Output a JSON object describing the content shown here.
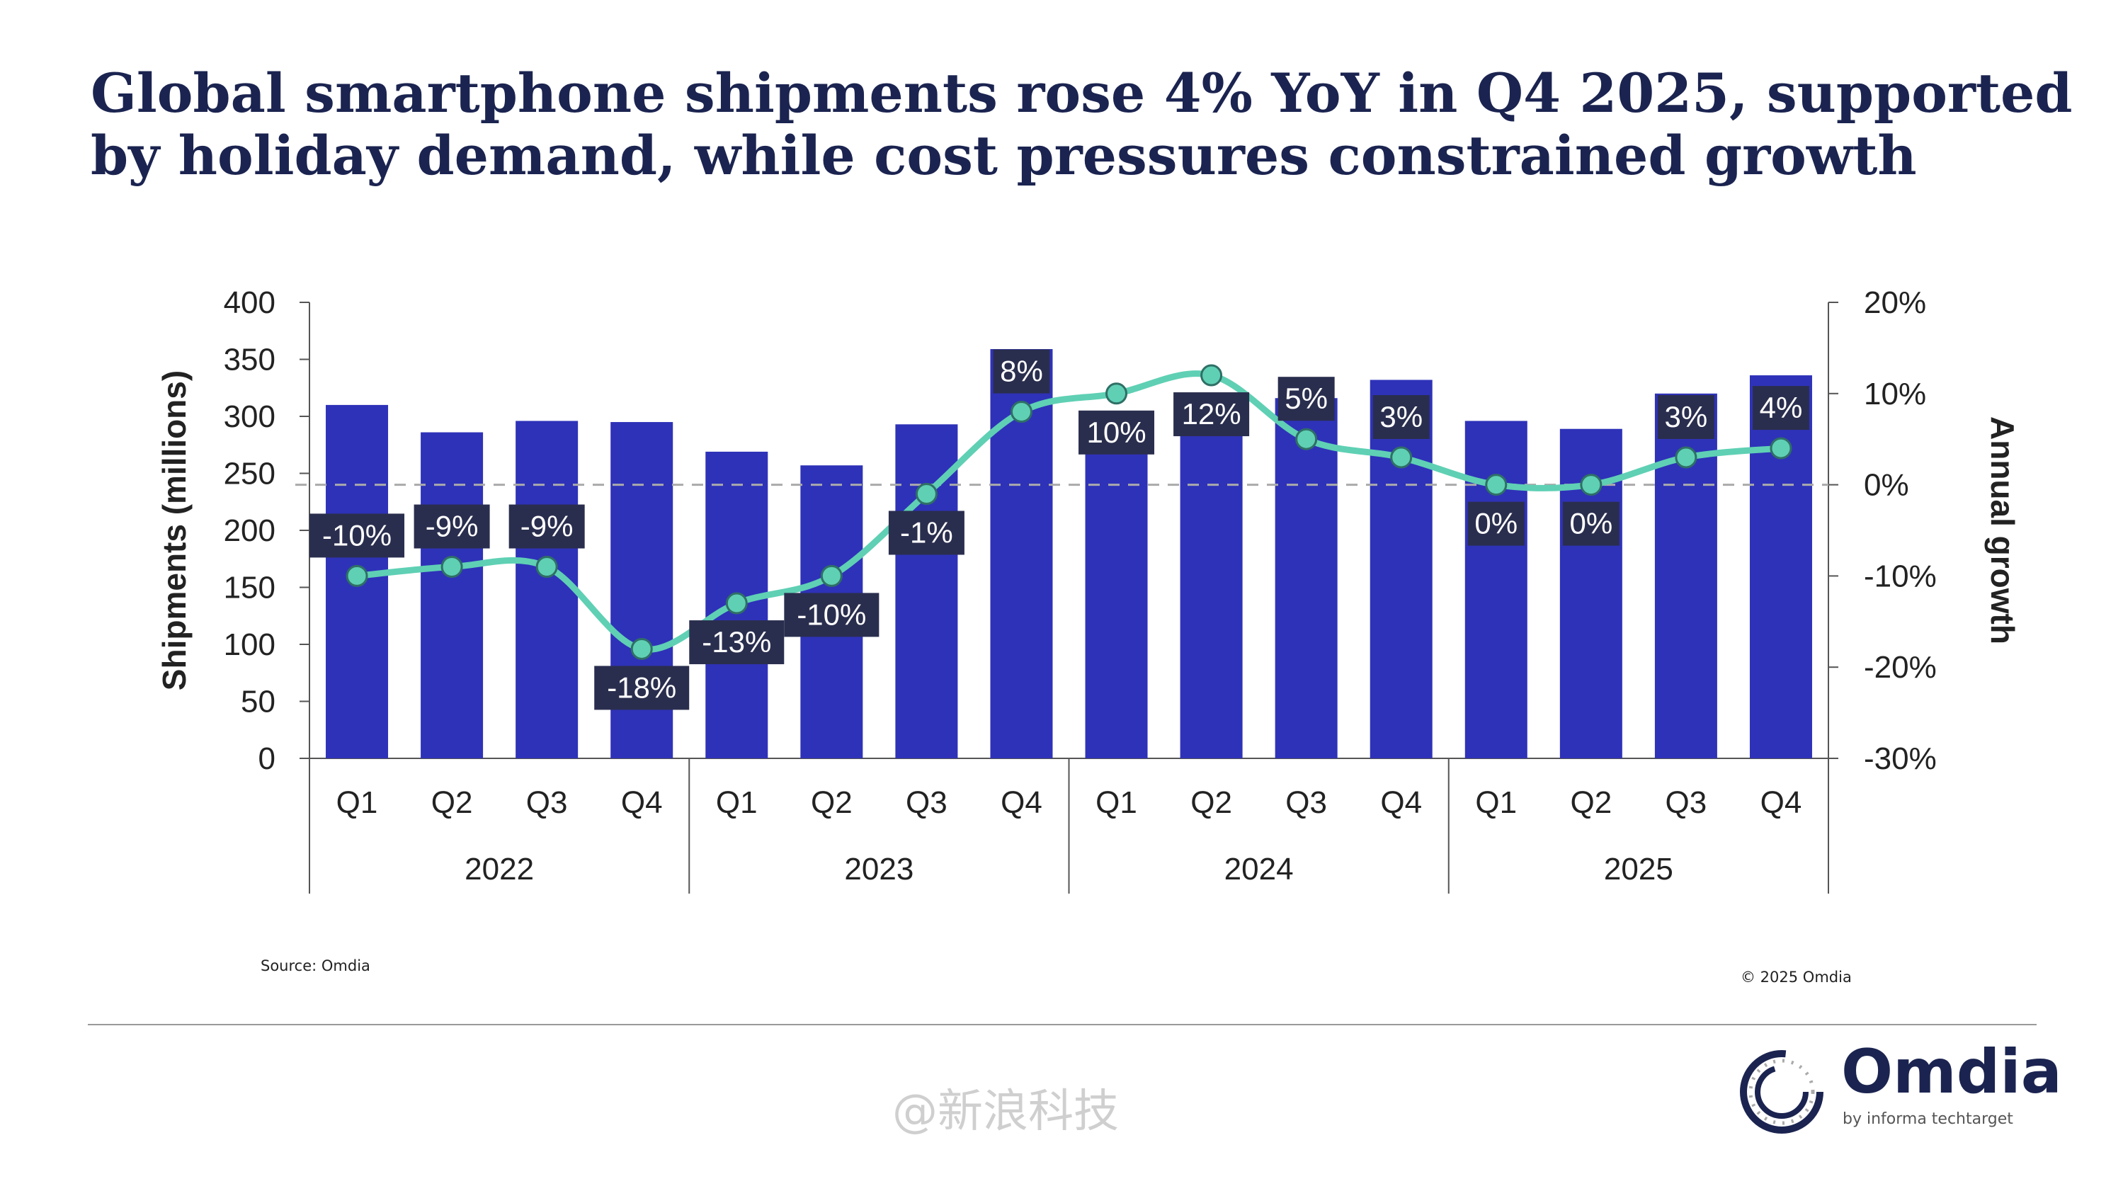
{
  "title": "Global smartphone shipments rose 4% YoY in Q4 2025, supported by holiday demand, while cost pressures constrained growth",
  "source": "Source: Omdia",
  "copyright": "© 2025 Omdia",
  "logo": {
    "text": "Omdia",
    "subtext": "by informa techtarget"
  },
  "watermark": "@新浪科技",
  "colors": {
    "bars": "#2e32b8",
    "line": "#5fd0b4",
    "label_bg": "#2a2e4e",
    "title": "#1b2450"
  },
  "chart_data": {
    "type": "bar+line",
    "categories": [
      "Q1",
      "Q2",
      "Q3",
      "Q4",
      "Q1",
      "Q2",
      "Q3",
      "Q4",
      "Q1",
      "Q2",
      "Q3",
      "Q4",
      "Q1",
      "Q2",
      "Q3",
      "Q4"
    ],
    "groups": [
      {
        "label": "2022",
        "span": 4
      },
      {
        "label": "2023",
        "span": 4
      },
      {
        "label": "2024",
        "span": 4
      },
      {
        "label": "2025",
        "span": 4
      }
    ],
    "series": [
      {
        "type": "bar",
        "axis": "left",
        "values": [
          310,
          286,
          296,
          295,
          269,
          257,
          293,
          359,
          296,
          289,
          316,
          332,
          296,
          289,
          320,
          336
        ]
      },
      {
        "type": "line",
        "axis": "right",
        "values": [
          -10,
          -9,
          -9,
          -18,
          -13,
          -10,
          -1,
          8,
          10,
          12,
          5,
          3,
          0,
          0,
          3,
          4
        ],
        "labels": [
          "-10%",
          "-9%",
          "-9%",
          "-18%",
          "-13%",
          "-10%",
          "-1%",
          "8%",
          "10%",
          "12%",
          "5%",
          "3%",
          "0%",
          "0%",
          "3%",
          "4%"
        ]
      }
    ],
    "ylabel": "Shipments (millions)",
    "y2label": "Annual growth",
    "ylim": [
      0,
      400
    ],
    "yticks": [
      "0",
      "50",
      "100",
      "150",
      "200",
      "250",
      "300",
      "350",
      "400"
    ],
    "y2lim": [
      -30,
      20
    ],
    "y2ticks": [
      "-30%",
      "-20%",
      "-10%",
      "0%",
      "10%",
      "20%"
    ],
    "reference_line": 0,
    "grid": false
  }
}
